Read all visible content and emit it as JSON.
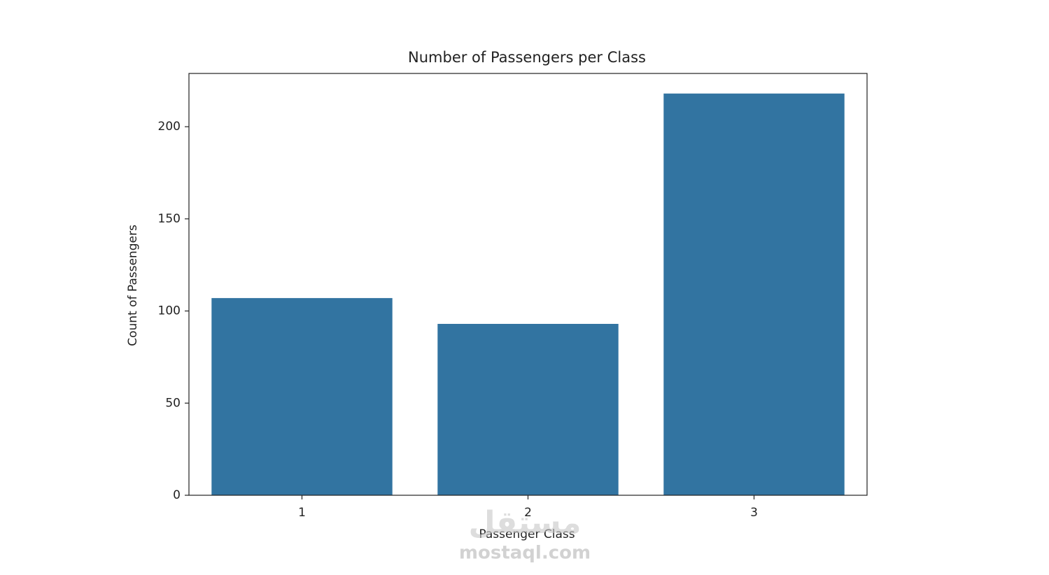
{
  "chart_data": {
    "type": "bar",
    "title": "Number of Passengers per Class",
    "x_label": "Passenger Class",
    "y_label": "Count of Passengers",
    "categories": [
      "1",
      "2",
      "3"
    ],
    "values": [
      107,
      93,
      218
    ],
    "color": "#3274a1",
    "ylim": [
      0,
      228.9
    ],
    "yticks": [
      0,
      50,
      100,
      150,
      200
    ],
    "grid": false
  },
  "watermark": {
    "logo": "مستقل",
    "url": "mostaql.com"
  }
}
